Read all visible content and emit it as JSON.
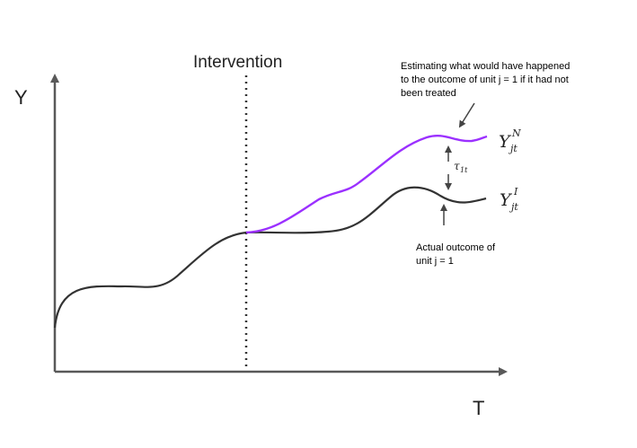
{
  "axes": {
    "y_label": "Y",
    "x_label": "T"
  },
  "intervention_label": "Intervention",
  "annotations": {
    "counterfactual_note": [
      "Estimating what would have happened",
      "to the outcome of unit j = 1 if it had not",
      "been treated"
    ],
    "actual_note": [
      "Actual outcome of",
      "unit  j = 1"
    ]
  },
  "curve_labels": {
    "counterfactual": {
      "base": "Y",
      "superscript": "N",
      "subscript": "jt"
    },
    "actual": {
      "base": "Y",
      "superscript": "I",
      "subscript": "jt"
    }
  },
  "effect_label": {
    "base": "τ",
    "subscript": "1t"
  },
  "colors": {
    "axis": "#595959",
    "actual_curve": "#333333",
    "counterfactual_curve": "#9b30ff",
    "dotted_line": "#333333",
    "text": "#000000"
  }
}
